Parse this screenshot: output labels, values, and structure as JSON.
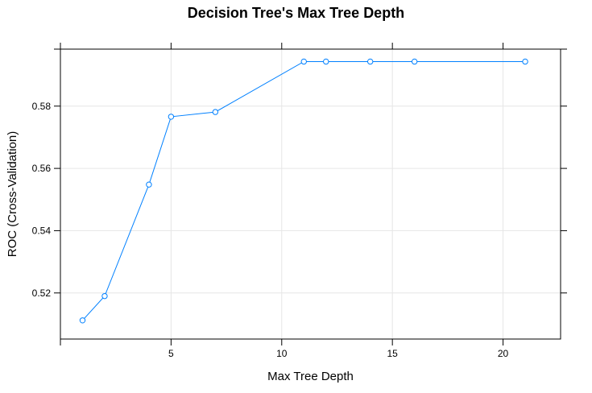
{
  "chart_data": {
    "type": "line",
    "title": "Decision Tree's Max Tree Depth",
    "xlabel": "Max Tree Depth",
    "ylabel": "ROC (Cross-Validation)",
    "xlim": [
      0,
      22.6
    ],
    "ylim": [
      0.5052,
      0.5983
    ],
    "xticks": [
      5,
      10,
      15,
      20
    ],
    "yticks": [
      0.52,
      0.54,
      0.56,
      0.58
    ],
    "x_minor_ticks": [
      0,
      5,
      10,
      15,
      20
    ],
    "grid": true,
    "series": [
      {
        "x": [
          1,
          2,
          4,
          5,
          7,
          11,
          12,
          14,
          16,
          21
        ],
        "y": [
          0.5112,
          0.519,
          0.5548,
          0.5766,
          0.5781,
          0.5943,
          0.5943,
          0.5943,
          0.5943,
          0.5943
        ],
        "color": "#0080ff",
        "marker": "open-circle"
      }
    ]
  }
}
